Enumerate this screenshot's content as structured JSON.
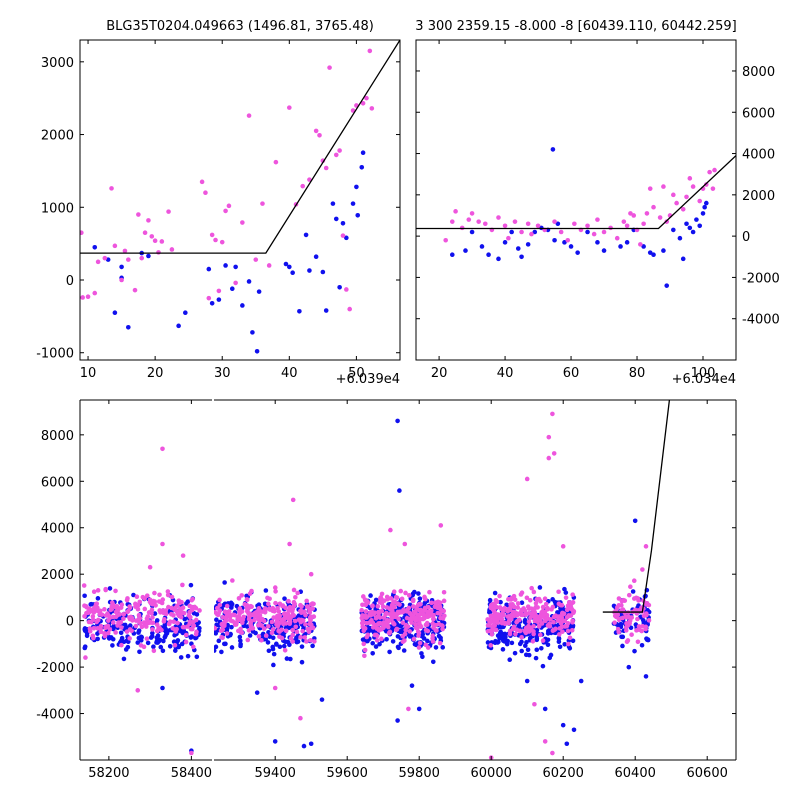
{
  "colors": {
    "series_a": "#1010ee",
    "series_b": "#ee55dd",
    "model": "#000000"
  },
  "chart_data": [
    {
      "id": "top-left",
      "type": "scatter",
      "title": "BLG35T0204.049663 (1496.81, 3765.48)",
      "x_offset_label": "+6.039e4",
      "xlim": [
        8.8,
        56.5
      ],
      "ylim": [
        -1100,
        3300
      ],
      "xticks": [
        10,
        20,
        30,
        40,
        50
      ],
      "yticks": [
        -1000,
        0,
        1000,
        2000,
        3000
      ],
      "y_axis_side": "left",
      "model_line": [
        [
          8.8,
          370
        ],
        [
          36.5,
          370
        ],
        [
          56.5,
          3300
        ]
      ],
      "series": [
        {
          "color": "#1010ee",
          "points": [
            [
              11,
              450
            ],
            [
              13,
              280
            ],
            [
              14,
              -450
            ],
            [
              15,
              180
            ],
            [
              15,
              30
            ],
            [
              16,
              -650
            ],
            [
              18,
              370
            ],
            [
              19,
              330
            ],
            [
              23.5,
              -630
            ],
            [
              24.5,
              -450
            ],
            [
              28,
              150
            ],
            [
              28.5,
              -320
            ],
            [
              29.5,
              -270
            ],
            [
              30.5,
              200
            ],
            [
              31.5,
              -120
            ],
            [
              32,
              180
            ],
            [
              33,
              -350
            ],
            [
              34,
              -20
            ],
            [
              34.5,
              -720
            ],
            [
              35.2,
              -980
            ],
            [
              35.5,
              -160
            ],
            [
              39.5,
              220
            ],
            [
              40,
              180
            ],
            [
              40.5,
              100
            ],
            [
              41.5,
              -430
            ],
            [
              42.5,
              620
            ],
            [
              43,
              130
            ],
            [
              44,
              320
            ],
            [
              45,
              110
            ],
            [
              45.5,
              -420
            ],
            [
              46.5,
              1050
            ],
            [
              47,
              840
            ],
            [
              47.5,
              -100
            ],
            [
              48,
              780
            ],
            [
              48.5,
              580
            ],
            [
              49.5,
              1050
            ],
            [
              50,
              1280
            ],
            [
              50.2,
              890
            ],
            [
              50.8,
              1550
            ],
            [
              51,
              1750
            ]
          ]
        },
        {
          "color": "#ee55dd",
          "points": [
            [
              9,
              650
            ],
            [
              9.2,
              -240
            ],
            [
              10,
              -230
            ],
            [
              11,
              -180
            ],
            [
              11.5,
              250
            ],
            [
              12.5,
              300
            ],
            [
              13.5,
              1260
            ],
            [
              14,
              470
            ],
            [
              15,
              0
            ],
            [
              15.5,
              400
            ],
            [
              16,
              280
            ],
            [
              17,
              -140
            ],
            [
              17.5,
              900
            ],
            [
              18,
              300
            ],
            [
              18.5,
              650
            ],
            [
              19,
              820
            ],
            [
              19.5,
              600
            ],
            [
              20,
              540
            ],
            [
              20.5,
              380
            ],
            [
              21,
              530
            ],
            [
              22,
              940
            ],
            [
              22.5,
              420
            ],
            [
              27,
              1350
            ],
            [
              27.5,
              1200
            ],
            [
              28,
              -250
            ],
            [
              28.5,
              620
            ],
            [
              29,
              550
            ],
            [
              29.5,
              -150
            ],
            [
              30,
              520
            ],
            [
              30.5,
              950
            ],
            [
              31,
              1020
            ],
            [
              32,
              -40
            ],
            [
              33,
              790
            ],
            [
              34,
              2260
            ],
            [
              35,
              280
            ],
            [
              36,
              1050
            ],
            [
              37,
              200
            ],
            [
              38,
              1620
            ],
            [
              40,
              2370
            ],
            [
              41,
              1040
            ],
            [
              42,
              1290
            ],
            [
              43,
              1380
            ],
            [
              44,
              2050
            ],
            [
              44.5,
              1990
            ],
            [
              45,
              1640
            ],
            [
              45.5,
              1540
            ],
            [
              46,
              2920
            ],
            [
              47,
              1720
            ],
            [
              47.5,
              1780
            ],
            [
              48,
              610
            ],
            [
              49,
              -400
            ],
            [
              49.5,
              2330
            ],
            [
              50,
              2400
            ],
            [
              51,
              2430
            ],
            [
              51.5,
              2500
            ],
            [
              52,
              3150
            ],
            [
              52.3,
              2360
            ],
            [
              48.5,
              -130
            ]
          ]
        }
      ]
    },
    {
      "id": "top-right",
      "type": "scatter",
      "title": "3 300 2359.15 -8.000 -8 [60439.110, 60442.259]",
      "x_offset_label": "+6.034e4",
      "xlim": [
        13,
        110
      ],
      "ylim": [
        -6000,
        9500
      ],
      "xticks": [
        20,
        40,
        60,
        80,
        100
      ],
      "yticks": [
        -4000,
        -2000,
        0,
        2000,
        4000,
        6000,
        8000
      ],
      "y_axis_side": "right",
      "model_line": [
        [
          13,
          370
        ],
        [
          86.5,
          370
        ],
        [
          110,
          3900
        ]
      ],
      "series": [
        {
          "color": "#1010ee",
          "points": [
            [
              24,
              -900
            ],
            [
              28,
              -700
            ],
            [
              30,
              200
            ],
            [
              33,
              -500
            ],
            [
              35,
              -900
            ],
            [
              38,
              -1100
            ],
            [
              40,
              -300
            ],
            [
              42,
              200
            ],
            [
              44,
              -600
            ],
            [
              45,
              -1000
            ],
            [
              47,
              -400
            ],
            [
              49,
              200
            ],
            [
              51,
              400
            ],
            [
              53,
              300
            ],
            [
              55,
              -200
            ],
            [
              54.5,
              4200
            ],
            [
              56,
              600
            ],
            [
              58,
              -300
            ],
            [
              60,
              -500
            ],
            [
              62,
              -800
            ],
            [
              65,
              200
            ],
            [
              68,
              -300
            ],
            [
              70,
              -700
            ],
            [
              75,
              -500
            ],
            [
              77,
              -300
            ],
            [
              79,
              300
            ],
            [
              82,
              -500
            ],
            [
              84,
              -800
            ],
            [
              85,
              -900
            ],
            [
              88,
              -700
            ],
            [
              89,
              -2400
            ],
            [
              91,
              300
            ],
            [
              93,
              -100
            ],
            [
              94,
              -1100
            ],
            [
              95,
              600
            ],
            [
              96,
              400
            ],
            [
              97,
              200
            ],
            [
              98,
              800
            ],
            [
              99,
              500
            ],
            [
              100,
              1100
            ],
            [
              101,
              1600
            ],
            [
              100.5,
              1400
            ]
          ]
        },
        {
          "color": "#ee55dd",
          "points": [
            [
              22,
              -200
            ],
            [
              24,
              700
            ],
            [
              25,
              1200
            ],
            [
              27,
              400
            ],
            [
              29,
              800
            ],
            [
              30,
              1100
            ],
            [
              32,
              700
            ],
            [
              34,
              600
            ],
            [
              36,
              300
            ],
            [
              38,
              900
            ],
            [
              40,
              500
            ],
            [
              41,
              -100
            ],
            [
              43,
              700
            ],
            [
              45,
              200
            ],
            [
              47,
              600
            ],
            [
              48,
              100
            ],
            [
              50,
              500
            ],
            [
              52,
              300
            ],
            [
              55,
              700
            ],
            [
              57,
              200
            ],
            [
              59,
              -200
            ],
            [
              61,
              600
            ],
            [
              63,
              300
            ],
            [
              65,
              500
            ],
            [
              67,
              100
            ],
            [
              68,
              800
            ],
            [
              70,
              200
            ],
            [
              72,
              400
            ],
            [
              74,
              -100
            ],
            [
              76,
              700
            ],
            [
              77,
              500
            ],
            [
              78,
              1100
            ],
            [
              79,
              1000
            ],
            [
              80,
              300
            ],
            [
              81,
              -400
            ],
            [
              82,
              600
            ],
            [
              83,
              1100
            ],
            [
              84,
              2300
            ],
            [
              85,
              1400
            ],
            [
              87,
              900
            ],
            [
              88,
              2400
            ],
            [
              89,
              700
            ],
            [
              90,
              1000
            ],
            [
              91,
              2000
            ],
            [
              92,
              1600
            ],
            [
              94,
              1300
            ],
            [
              95,
              1900
            ],
            [
              96,
              2800
            ],
            [
              97,
              2400
            ],
            [
              99,
              1700
            ],
            [
              100,
              2300
            ],
            [
              101,
              2500
            ],
            [
              102,
              3100
            ],
            [
              103,
              2300
            ],
            [
              103.5,
              3200
            ]
          ]
        }
      ]
    },
    {
      "id": "bottom",
      "type": "scatter",
      "xlim_left": [
        58130,
        58450
      ],
      "xlim_right": [
        59230,
        60680
      ],
      "ylim": [
        -6000,
        9500
      ],
      "xticks_left": [
        58200,
        58400
      ],
      "xticks_right": [
        59400,
        59600,
        59800,
        60000,
        60200,
        60400,
        60600
      ],
      "yticks": [
        -4000,
        -2000,
        0,
        2000,
        4000,
        6000,
        8000
      ],
      "clusters": [
        {
          "x": [
            58140,
            58420
          ],
          "n": 230
        },
        {
          "x": [
            59230,
            59510
          ],
          "n": 240
        },
        {
          "x": [
            59640,
            59870
          ],
          "n": 260
        },
        {
          "x": [
            59990,
            60230
          ],
          "n": 260
        },
        {
          "x": [
            60340,
            60440
          ],
          "n": 70
        }
      ],
      "outliers_a": [
        [
          58330,
          -2900
        ],
        [
          58400,
          -5600
        ],
        [
          59350,
          -3100
        ],
        [
          59400,
          -5200
        ],
        [
          59480,
          -5400
        ],
        [
          59500,
          -5300
        ],
        [
          59740,
          8600
        ],
        [
          59745,
          5600
        ],
        [
          59740,
          -4300
        ],
        [
          59780,
          -2800
        ],
        [
          59800,
          -3800
        ],
        [
          60150,
          -3800
        ],
        [
          60200,
          -4500
        ],
        [
          60210,
          -5300
        ],
        [
          60230,
          -4700
        ],
        [
          60250,
          -2600
        ],
        [
          60400,
          4300
        ],
        [
          60430,
          -2400
        ],
        [
          60100,
          -2600
        ],
        [
          59530,
          -3400
        ]
      ],
      "outliers_b": [
        [
          58330,
          7400
        ],
        [
          58330,
          3300
        ],
        [
          58300,
          2300
        ],
        [
          58270,
          -3000
        ],
        [
          58380,
          2800
        ],
        [
          58400,
          -5700
        ],
        [
          59450,
          5200
        ],
        [
          59440,
          3300
        ],
        [
          59500,
          2000
        ],
        [
          59400,
          -2900
        ],
        [
          59470,
          -4200
        ],
        [
          59720,
          3900
        ],
        [
          59770,
          -3800
        ],
        [
          59860,
          4100
        ],
        [
          59760,
          3300
        ],
        [
          60100,
          6100
        ],
        [
          60170,
          8900
        ],
        [
          60160,
          7900
        ],
        [
          60160,
          7000
        ],
        [
          60175,
          7200
        ],
        [
          60200,
          3200
        ],
        [
          60120,
          -3600
        ],
        [
          60150,
          -5200
        ],
        [
          60170,
          -5700
        ],
        [
          60000,
          -5900
        ],
        [
          60430,
          3200
        ],
        [
          60420,
          2200
        ]
      ],
      "model_line": [
        [
          60310,
          370
        ],
        [
          60420,
          370
        ],
        [
          60445,
          3000
        ],
        [
          60495,
          9500
        ]
      ]
    }
  ]
}
